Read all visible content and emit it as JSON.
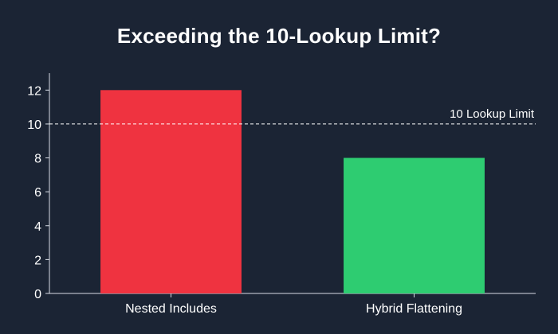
{
  "chart_data": {
    "type": "bar",
    "title": "Exceeding the 10-Lookup Limit?",
    "xlabel": "",
    "ylabel": "",
    "categories": [
      "Nested Includes",
      "Hybrid Flattening"
    ],
    "values": [
      12,
      8
    ],
    "bar_colors": [
      "#ef3340",
      "#2ecc71"
    ],
    "ylim": [
      0,
      13
    ],
    "yticks": [
      0,
      2,
      4,
      6,
      8,
      10,
      12
    ],
    "grid": false,
    "reference_line": {
      "value": 10,
      "label": "10 Lookup Limit",
      "style": "dashed",
      "color": "#ffffff"
    },
    "colors": {
      "background": "#1b2434",
      "text": "#ffffff",
      "axis": "#d8dde6"
    }
  }
}
